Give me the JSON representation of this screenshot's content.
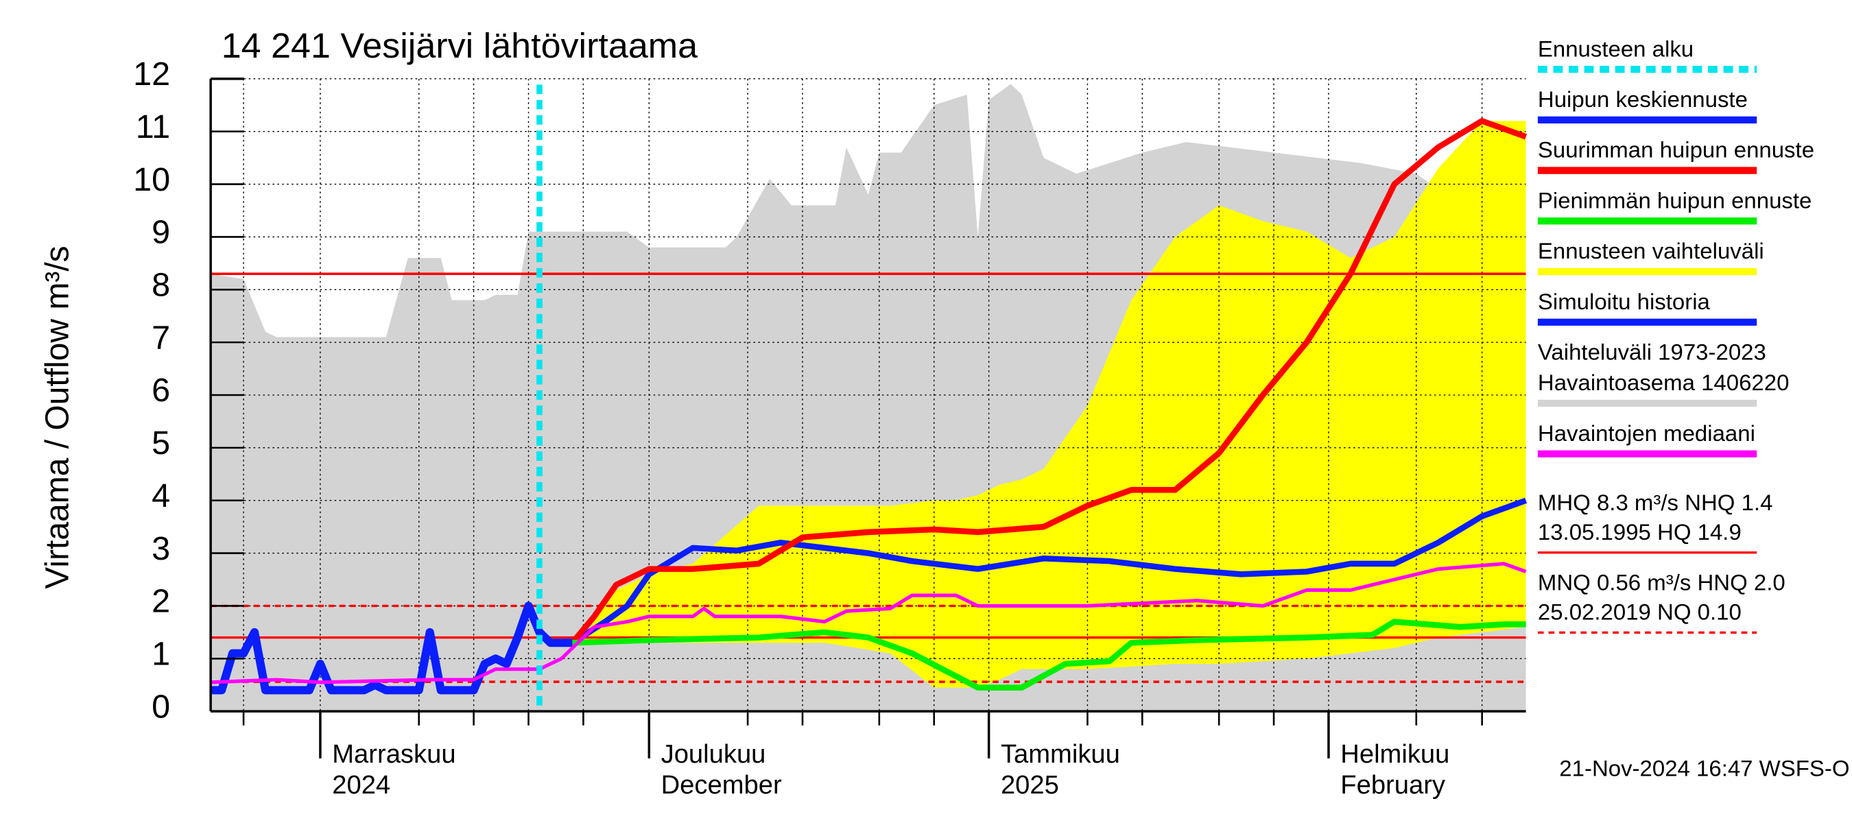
{
  "chart_data": {
    "type": "line",
    "title": "14 241 Vesijärvi lähtövirtaama",
    "ylabel": "Virtaama / Outflow    m³/s",
    "footer": "21-Nov-2024 16:47 WSFS-O",
    "xlim": [
      0,
      120
    ],
    "ylim": [
      0,
      12
    ],
    "yticks": [
      0,
      1,
      2,
      3,
      4,
      5,
      6,
      7,
      8,
      9,
      10,
      11,
      12
    ],
    "grid": true,
    "xticks": [
      {
        "value": 10,
        "label": [
          "Marraskuu",
          "2024"
        ]
      },
      {
        "value": 40,
        "label": [
          "Joulukuu",
          "December"
        ]
      },
      {
        "value": 71,
        "label": [
          "Tammikuu",
          "2025"
        ]
      },
      {
        "value": 102,
        "label": [
          "Helmikuu",
          "February"
        ]
      }
    ],
    "xgrid": [
      3,
      10,
      19,
      24,
      29,
      34,
      40,
      49,
      54,
      61,
      66,
      71,
      80,
      85,
      92,
      97,
      102,
      110,
      116
    ],
    "series": [
      {
        "name": [
          "Ennusteen alku"
        ],
        "color": "#00e5ee",
        "kind": "vline",
        "x": 30
      },
      {
        "name": [
          "Huipun keskiennuste"
        ],
        "color": "#0a1eff",
        "kind": "line",
        "width": 5,
        "x": [
          33,
          36,
          38,
          40,
          44,
          48,
          52,
          56,
          60,
          64,
          70,
          76,
          82,
          88,
          94,
          100,
          104,
          108,
          112,
          116,
          120
        ],
        "values": [
          1.3,
          1.7,
          2.0,
          2.6,
          3.1,
          3.05,
          3.2,
          3.1,
          3.0,
          2.85,
          2.7,
          2.9,
          2.85,
          2.7,
          2.6,
          2.65,
          2.8,
          2.8,
          3.2,
          3.7,
          4.0
        ]
      },
      {
        "name": [
          "Suurimman huipun ennuste"
        ],
        "color": "#ff0000",
        "kind": "line",
        "width": 5,
        "x": [
          33,
          35,
          37,
          40,
          44,
          50,
          54,
          60,
          66,
          70,
          76,
          80,
          84,
          88,
          92,
          96,
          100,
          104,
          108,
          112,
          116,
          120
        ],
        "values": [
          1.3,
          1.8,
          2.4,
          2.7,
          2.7,
          2.8,
          3.3,
          3.4,
          3.45,
          3.4,
          3.5,
          3.9,
          4.2,
          4.2,
          4.9,
          6.0,
          7.0,
          8.3,
          10.0,
          10.7,
          11.2,
          10.9
        ]
      },
      {
        "name": [
          "Pienimmän huipun ennuste"
        ],
        "color": "#00ee00",
        "kind": "line",
        "width": 5,
        "x": [
          33,
          40,
          50,
          56,
          60,
          64,
          70,
          74,
          78,
          82,
          84,
          90,
          100,
          106,
          108,
          114,
          118,
          120
        ],
        "values": [
          1.3,
          1.35,
          1.4,
          1.5,
          1.4,
          1.1,
          0.45,
          0.45,
          0.9,
          0.95,
          1.3,
          1.35,
          1.4,
          1.45,
          1.7,
          1.6,
          1.65,
          1.65
        ]
      },
      {
        "name": [
          "Ennusteen vaihteluväli"
        ],
        "color": "#ffff00",
        "kind": "band",
        "x": [
          34,
          36,
          40,
          44,
          50,
          56,
          62,
          66,
          68,
          70,
          72,
          74,
          76,
          80,
          84,
          88,
          92,
          96,
          100,
          104,
          108,
          112,
          116,
          120
        ],
        "values": [
          1.3,
          2.2,
          2.6,
          2.8,
          3.9,
          3.9,
          3.9,
          4.0,
          4.0,
          4.1,
          4.3,
          4.4,
          4.6,
          5.8,
          7.8,
          9.0,
          9.6,
          9.3,
          9.1,
          8.6,
          9.0,
          10.3,
          11.2,
          11.2
        ],
        "lower": [
          1.3,
          1.3,
          1.3,
          1.3,
          1.3,
          1.3,
          1.1,
          0.45,
          0.45,
          0.45,
          0.6,
          0.8,
          0.8,
          0.8,
          0.85,
          0.9,
          0.9,
          0.95,
          1.0,
          1.1,
          1.2,
          1.4,
          1.5,
          1.6
        ]
      },
      {
        "name": [
          "Simuloitu historia"
        ],
        "color": "#0a1eff",
        "kind": "line",
        "width": 7,
        "x": [
          0,
          1,
          2,
          3,
          4,
          5,
          9,
          10,
          11,
          14,
          15,
          16,
          19,
          20,
          21,
          24,
          25,
          26,
          27,
          28,
          29,
          30,
          31,
          33
        ],
        "values": [
          0.4,
          0.4,
          1.1,
          1.1,
          1.5,
          0.4,
          0.4,
          0.9,
          0.4,
          0.4,
          0.5,
          0.4,
          0.4,
          1.5,
          0.4,
          0.4,
          0.9,
          1.0,
          0.9,
          1.4,
          2.0,
          1.5,
          1.3,
          1.3
        ]
      },
      {
        "name": [
          "Vaihteluväli 1973-2023",
          " Havaintoasema 1406220"
        ],
        "color": "#d3d3d3",
        "kind": "area",
        "x": [
          0,
          3,
          5,
          6,
          16,
          18,
          21,
          22,
          25,
          26,
          28,
          29,
          38,
          40,
          47,
          48,
          51,
          53,
          57,
          58,
          60,
          61,
          63,
          66,
          69,
          70,
          71,
          73,
          74,
          76,
          79,
          82,
          85,
          89,
          93,
          105,
          110,
          114,
          120
        ],
        "values": [
          8.3,
          8.2,
          7.2,
          7.1,
          7.1,
          8.6,
          8.6,
          7.8,
          7.8,
          7.9,
          7.9,
          9.1,
          9.1,
          8.8,
          8.8,
          9.0,
          10.1,
          9.6,
          9.6,
          10.7,
          9.8,
          10.6,
          10.6,
          11.5,
          11.7,
          9.0,
          11.6,
          11.9,
          11.7,
          10.5,
          10.2,
          10.4,
          10.6,
          10.8,
          10.7,
          10.4,
          10.2,
          9.6,
          9.2
        ]
      },
      {
        "name": [
          "Havaintojen mediaani"
        ],
        "color": "#ff00ff",
        "kind": "line",
        "width": 3,
        "x": [
          0,
          6,
          10,
          20,
          24,
          26,
          30,
          32,
          35,
          38,
          40,
          44,
          45,
          46,
          52,
          56,
          58,
          62,
          64,
          68,
          70,
          80,
          90,
          96,
          100,
          104,
          108,
          112,
          118,
          120
        ],
        "values": [
          0.55,
          0.6,
          0.55,
          0.6,
          0.6,
          0.8,
          0.8,
          1.0,
          1.6,
          1.7,
          1.8,
          1.8,
          1.95,
          1.8,
          1.8,
          1.7,
          1.9,
          1.95,
          2.2,
          2.2,
          2.0,
          2.0,
          2.1,
          2.0,
          2.3,
          2.3,
          2.5,
          2.7,
          2.8,
          2.65
        ]
      }
    ],
    "reference_lines": [
      {
        "value": 8.3,
        "color": "#ff0000",
        "dashed": false
      },
      {
        "value": 1.4,
        "color": "#ff0000",
        "dashed": false
      },
      {
        "value": 2.0,
        "color": "#ff0000",
        "dashed": true
      },
      {
        "value": 0.56,
        "color": "#ff0000",
        "dashed": true
      }
    ],
    "stats": [
      {
        "lines": [
          "MHQ  8.3 m³/s NHQ  1.4",
          "13.05.1995 HQ 14.9"
        ],
        "color": "#ff0000",
        "dashed": false
      },
      {
        "lines": [
          "MNQ 0.56 m³/s HNQ  2.0",
          "25.02.2019 NQ 0.10"
        ],
        "color": "#ff0000",
        "dashed": true
      }
    ]
  }
}
